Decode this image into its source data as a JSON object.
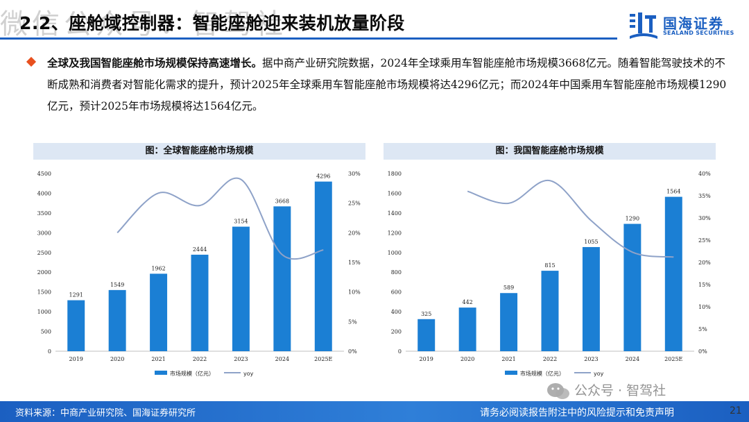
{
  "header": {
    "title": "2.2、座舱域控制器：智能座舱迎来装机放量阶段",
    "watermark": "微信公众号：智驾社"
  },
  "logo": {
    "name_cn": "国海证券",
    "name_en": "SEALAND SECURITIES",
    "brand_color": "#1b5fc1"
  },
  "summary": {
    "lead": "全球及我国智能座舱市场规模保持高速增长。",
    "body": "据中商产业研究院数据，2024年全球乘用车智能座舱市场规模3668亿元。随着智能驾驶技术的不断成熟和消费者对智能化需求的提升，预计2025年全球乘用车智能座舱市场规模将达4296亿元；而2024年中国乘用车智能座舱市场规模1290亿元，预计2025年市场规模将达1564亿元。"
  },
  "chart_data": [
    {
      "type": "bar",
      "title": "图：全球智能座舱市场规模",
      "categories": [
        "2019",
        "2020",
        "2021",
        "2022",
        "2023",
        "2024",
        "2025E"
      ],
      "series": [
        {
          "name": "市场规模（亿元）",
          "type": "bar",
          "axis": "left",
          "values": [
            1291,
            1549,
            1962,
            2444,
            3154,
            3668,
            4296
          ],
          "color": "#1b7fd4"
        },
        {
          "name": "yoy",
          "type": "line",
          "axis": "right",
          "values": [
            null,
            0.2,
            0.267,
            0.246,
            0.29,
            0.163,
            0.171
          ],
          "color": "#8ea2c8"
        }
      ],
      "y_left": {
        "min": 0,
        "max": 4500,
        "ticks": [
          "0",
          "500",
          "1000",
          "1500",
          "2000",
          "2500",
          "3000",
          "3500",
          "4000",
          "4500"
        ]
      },
      "y_right": {
        "min": 0,
        "max": 0.3,
        "ticks": [
          "0%",
          "5%",
          "10%",
          "15%",
          "20%",
          "25%",
          "30%"
        ]
      },
      "legend": [
        "市场规模（亿元）",
        "yoy"
      ]
    },
    {
      "type": "bar",
      "title": "图：我国智能座舱市场规模",
      "categories": [
        "2019",
        "2020",
        "2021",
        "2022",
        "2023",
        "2024",
        "2025E"
      ],
      "series": [
        {
          "name": "市场规模（亿元）",
          "type": "bar",
          "axis": "left",
          "values": [
            325,
            442,
            589,
            815,
            1055,
            1290,
            1564
          ],
          "color": "#1b7fd4"
        },
        {
          "name": "yoy",
          "type": "line",
          "axis": "right",
          "values": [
            null,
            0.36,
            0.333,
            0.384,
            0.294,
            0.223,
            0.212
          ],
          "color": "#8ea2c8"
        }
      ],
      "y_left": {
        "min": 0,
        "max": 1800,
        "ticks": [
          "0",
          "200",
          "400",
          "600",
          "800",
          "1000",
          "1200",
          "1400",
          "1600",
          "1800"
        ]
      },
      "y_right": {
        "min": 0,
        "max": 0.4,
        "ticks": [
          "0%",
          "5%",
          "10%",
          "15%",
          "20%",
          "25%",
          "30%",
          "35%",
          "40%"
        ]
      },
      "legend": [
        "市场规模（亿元）",
        "yoy"
      ]
    }
  ],
  "footer": {
    "source": "资料来源：中商产业研究院、国海证券研究所",
    "disclaimer": "请务必阅读报告附注中的风险提示和免责声明",
    "page": "21",
    "wechat_mark": "公众号 · 智驾社"
  }
}
